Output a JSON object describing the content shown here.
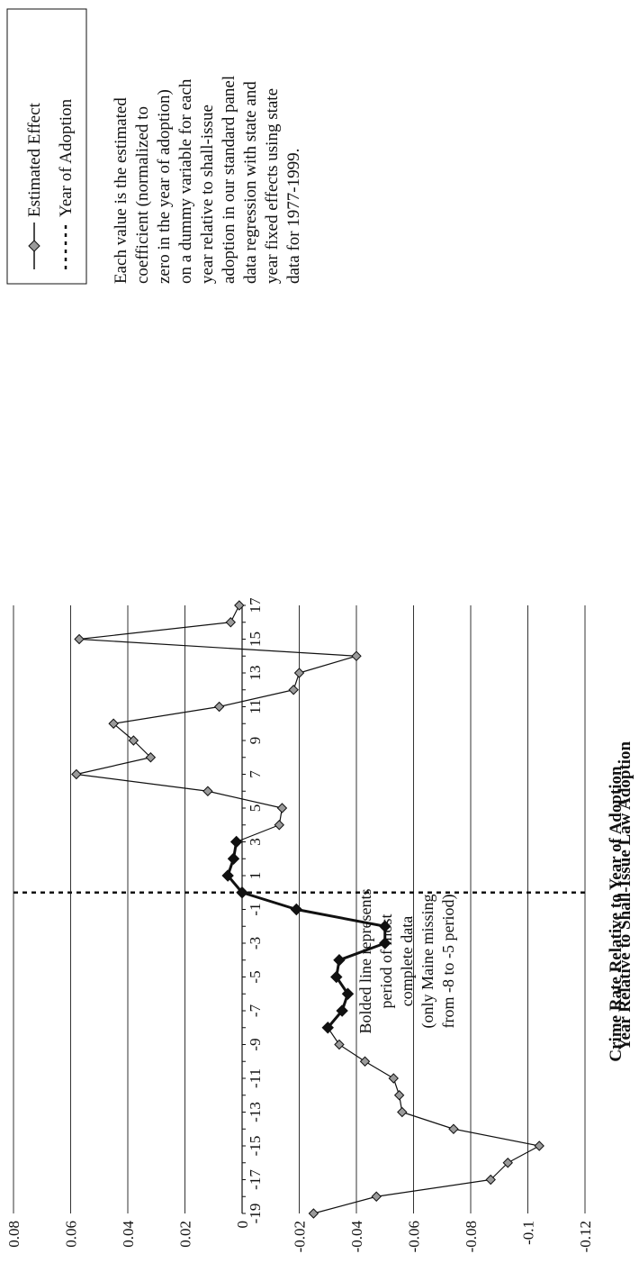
{
  "chart_data": {
    "type": "line",
    "xlabel": "Year Relative to Shall-Issue Law Adoption",
    "ylabel": "Crime Rate Relative to Year of Adoption",
    "ylim": [
      -0.12,
      0.08
    ],
    "y_ticks": [
      "0.08",
      "0.06",
      "0.04",
      "0.02",
      "0",
      "-0.02",
      "-0.04",
      "-0.06",
      "-0.08",
      "-0.1",
      "-0.12"
    ],
    "y_tick_values": [
      0.08,
      0.06,
      0.04,
      0.02,
      0,
      -0.02,
      -0.04,
      -0.06,
      -0.08,
      -0.1,
      -0.12
    ],
    "x_ticks": [
      "-19",
      "-17",
      "-15",
      "-13",
      "-11",
      "-9",
      "-7",
      "-5",
      "-3",
      "-1",
      "1",
      "3",
      "5",
      "7",
      "9",
      "11",
      "13",
      "15",
      "17"
    ],
    "x_tick_values": [
      -19,
      -17,
      -15,
      -13,
      -11,
      -9,
      -7,
      -5,
      -3,
      -1,
      1,
      3,
      5,
      7,
      9,
      11,
      13,
      15,
      17
    ],
    "xlim": [
      -19,
      17
    ],
    "grid": true,
    "series": [
      {
        "name": "Estimated Effect",
        "x": [
          -19,
          -18,
          -17,
          -16,
          -15,
          -14,
          -13,
          -12,
          -11,
          -10,
          -9,
          -8,
          -7,
          -6,
          -5,
          -4,
          -3,
          -2,
          -1,
          0,
          1,
          2,
          3,
          4,
          5,
          6,
          7,
          8,
          9,
          10,
          11,
          12,
          13,
          14,
          15,
          16,
          17
        ],
        "y": [
          -0.025,
          -0.047,
          -0.087,
          -0.093,
          -0.104,
          -0.074,
          -0.056,
          -0.055,
          -0.053,
          -0.043,
          -0.034,
          -0.03,
          -0.035,
          -0.037,
          -0.033,
          -0.034,
          -0.05,
          -0.05,
          -0.019,
          0.0,
          0.005,
          0.003,
          0.002,
          -0.013,
          -0.014,
          0.012,
          0.058,
          0.032,
          0.038,
          0.045,
          0.008,
          -0.018,
          -0.02,
          -0.04,
          0.057,
          0.004,
          0.001
        ],
        "bold_range": [
          -8,
          3
        ],
        "color": "#111111",
        "marker_fill": "#9a9a9a",
        "marker_fill_bold": "#111111"
      }
    ],
    "reference_line": {
      "name": "Year of Adoption",
      "x": 0
    },
    "legend": {
      "position": "top-right",
      "items": [
        "Estimated Effect",
        "Year of Adoption"
      ]
    },
    "annotations": {
      "bold_note": [
        "Bolded line represents",
        "period of most",
        "complete data",
        "(only Maine missing",
        "from -8 to -5 period)"
      ],
      "method_note": [
        "Each value is the estimated",
        "coefficient (normalized to",
        "zero in the year of adoption)",
        "on a dummy variable for each",
        "year relative to shall-issue",
        "adoption in our standard panel",
        "data regression with state and",
        "year fixed effects using state",
        "data for 1977-1999."
      ]
    }
  }
}
